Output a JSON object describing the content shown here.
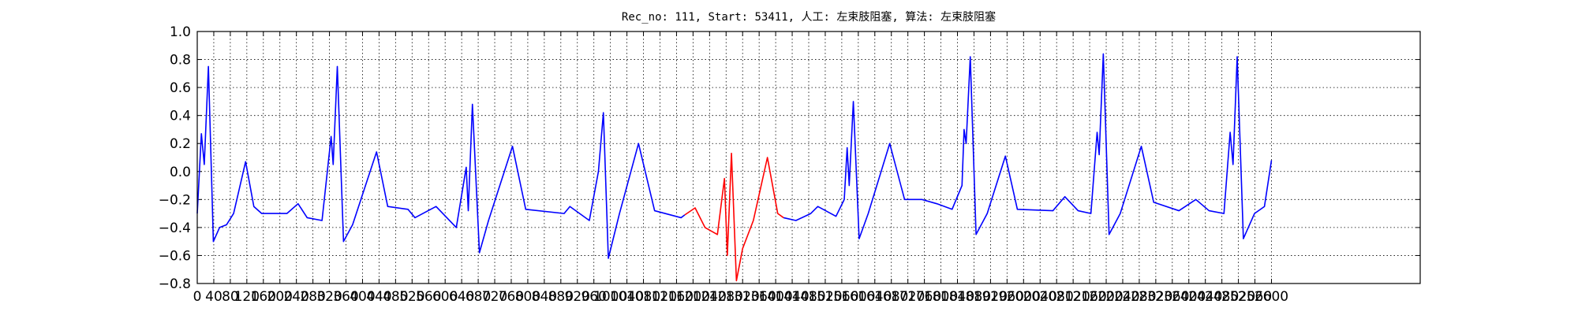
{
  "chart_data": {
    "type": "line",
    "title": "Rec_no: 111, Start: 53411, 人工: 左束肢阻塞, 算法: 左束肢阻塞",
    "xlim": [
      0,
      2960
    ],
    "ylim": [
      -0.8,
      1.0
    ],
    "xticks": [
      0,
      40,
      80,
      120,
      160,
      200,
      240,
      280,
      320,
      360,
      400,
      440,
      480,
      520,
      560,
      600,
      640,
      680,
      720,
      760,
      800,
      840,
      880,
      920,
      960,
      1000,
      1040,
      1080,
      1120,
      1160,
      1200,
      1240,
      1280,
      1320,
      1360,
      1400,
      1440,
      1480,
      1520,
      1560,
      1600,
      1640,
      1680,
      1720,
      1760,
      1800,
      1840,
      1880,
      1920,
      1960,
      2000,
      2040,
      2080,
      2120,
      2160,
      2200,
      2240,
      2280,
      2320,
      2360,
      2400,
      2440,
      2480,
      2520,
      2560,
      2600
    ],
    "yticks": [
      {
        "value": -0.8,
        "label": "−0.8"
      },
      {
        "value": -0.6,
        "label": "−0.6"
      },
      {
        "value": -0.4,
        "label": "−0.4"
      },
      {
        "value": -0.2,
        "label": "−0.2"
      },
      {
        "value": 0,
        "label": "0.0"
      },
      0.2,
      0.4,
      0.6,
      0.8,
      {
        "value": 1.0,
        "label": "1.0"
      }
    ],
    "grid": true,
    "series": [
      {
        "color": "#0000ff",
        "x": [
          0,
          10,
          17,
          27,
          39,
          54,
          71,
          88,
          117,
          137,
          156,
          217,
          244,
          266,
          302,
          324,
          329,
          339,
          354,
          376,
          434,
          461,
          510,
          527,
          578,
          627,
          651,
          656,
          666,
          683,
          705,
          763,
          795,
          888,
          902,
          949,
          971,
          983,
          995,
          1022,
          1068,
          1107,
          1171,
          1180,
          null,
          1419,
          1449,
          1485,
          1502,
          1546,
          1566,
          1573,
          1578,
          1588,
          1602,
          1624,
          1676,
          1712,
          1754,
          1790,
          1827,
          1851,
          1856,
          1861,
          1871,
          1885,
          1912,
          1956,
          1985,
          2071,
          2100,
          2132,
          2163,
          2178,
          2183,
          2193,
          2207,
          2234,
          2285,
          2315,
          2376,
          2417,
          2449,
          2485,
          2500,
          2507,
          2517,
          2532,
          2559,
          2583,
          2600
        ],
        "values": [
          -0.3,
          0.27,
          0.05,
          0.75,
          -0.5,
          -0.4,
          -0.38,
          -0.3,
          0.07,
          -0.25,
          -0.3,
          -0.3,
          -0.23,
          -0.33,
          -0.35,
          0.25,
          0.05,
          0.75,
          -0.5,
          -0.38,
          0.14,
          -0.25,
          -0.27,
          -0.33,
          -0.25,
          -0.4,
          0.03,
          -0.28,
          0.48,
          -0.58,
          -0.35,
          0.18,
          -0.27,
          -0.3,
          -0.25,
          -0.35,
          0.0,
          0.42,
          -0.62,
          -0.3,
          0.2,
          -0.28,
          -0.33,
          -0.31,
          null,
          -0.33,
          -0.35,
          -0.3,
          -0.25,
          -0.32,
          -0.2,
          0.17,
          -0.1,
          0.5,
          -0.48,
          -0.3,
          0.2,
          -0.2,
          -0.2,
          -0.23,
          -0.27,
          -0.1,
          0.3,
          0.2,
          0.82,
          -0.45,
          -0.3,
          0.11,
          -0.27,
          -0.28,
          -0.18,
          -0.28,
          -0.3,
          0.28,
          0.12,
          0.84,
          -0.45,
          -0.3,
          0.18,
          -0.22,
          -0.28,
          -0.2,
          -0.28,
          -0.3,
          0.28,
          0.05,
          0.82,
          -0.48,
          -0.3,
          -0.25,
          0.08
        ]
      },
      {
        "color": "#ff0000",
        "x": [
          1180,
          1205,
          1229,
          1259,
          1276,
          1283,
          1293,
          1305,
          1320,
          1346,
          1380,
          1405,
          1419
        ],
        "values": [
          -0.31,
          -0.26,
          -0.4,
          -0.45,
          -0.05,
          -0.6,
          0.13,
          -0.78,
          -0.55,
          -0.35,
          0.1,
          -0.3,
          -0.33
        ]
      }
    ]
  }
}
